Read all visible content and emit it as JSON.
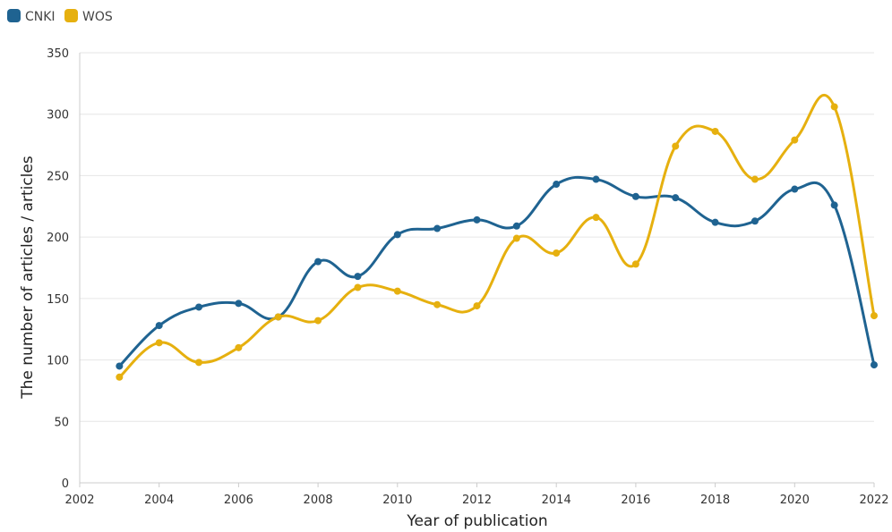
{
  "chart_data": {
    "type": "line",
    "title": "",
    "xlabel": "Year of publication",
    "ylabel": "The number of articles / articles",
    "xlim": [
      2002,
      2022
    ],
    "ylim": [
      0,
      350
    ],
    "x_ticks": [
      "2002",
      "2004",
      "2006",
      "2008",
      "2010",
      "2012",
      "2014",
      "2016",
      "2018",
      "2020",
      "2022"
    ],
    "y_ticks": [
      "0",
      "50",
      "100",
      "150",
      "200",
      "250",
      "300",
      "350"
    ],
    "grid": "horizontal",
    "legend_position": "top-left",
    "smooth": true,
    "x": [
      2003,
      2004,
      2005,
      2006,
      2007,
      2008,
      2009,
      2010,
      2011,
      2012,
      2013,
      2014,
      2015,
      2016,
      2017,
      2018,
      2019,
      2020,
      2021,
      2022
    ],
    "series": [
      {
        "name": "CNKI",
        "color": "#1f6391",
        "values": [
          95,
          128,
          143,
          146,
          135,
          180,
          168,
          202,
          207,
          214,
          209,
          243,
          247,
          233,
          232,
          212,
          213,
          239,
          226,
          96
        ]
      },
      {
        "name": "WOS",
        "color": "#e6b00f",
        "values": [
          86,
          114,
          98,
          110,
          135,
          132,
          159,
          156,
          145,
          144,
          199,
          187,
          216,
          178,
          274,
          286,
          247,
          279,
          306,
          136
        ]
      }
    ]
  }
}
